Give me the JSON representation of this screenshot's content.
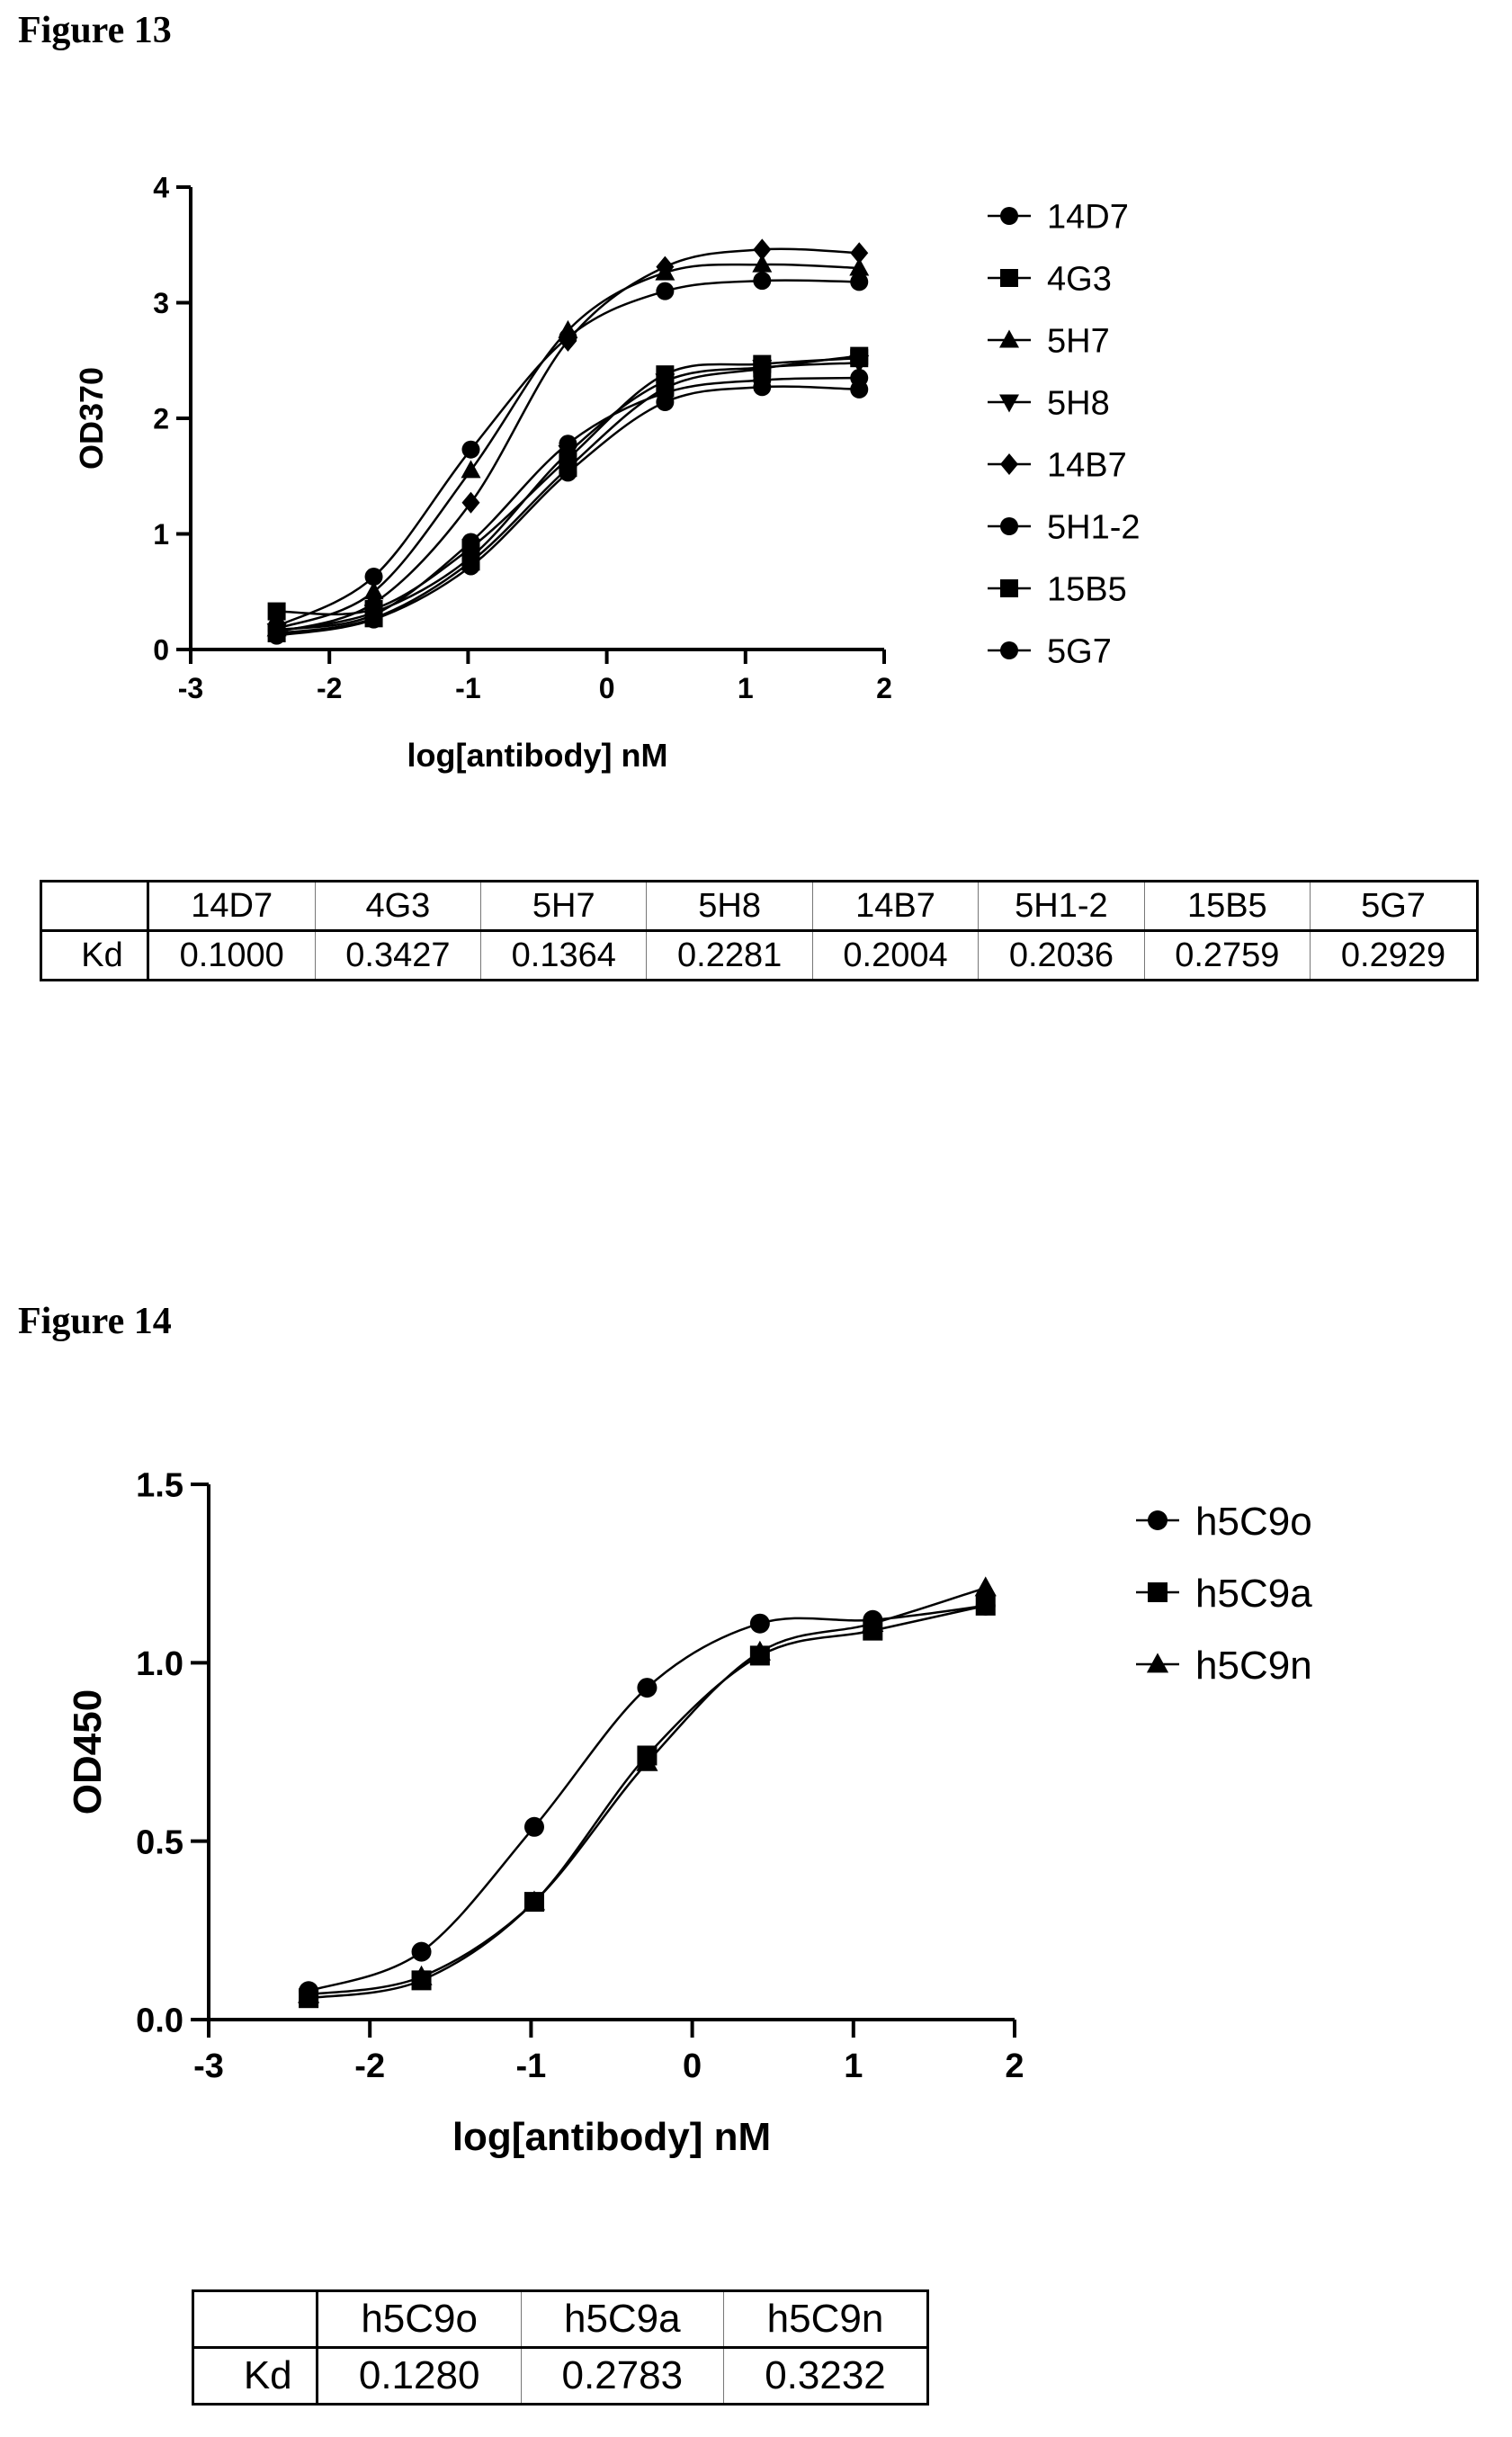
{
  "fig13": {
    "title": "Figure 13",
    "chart_data": {
      "type": "line",
      "xlabel": "log[antibody] nM",
      "ylabel": "OD370",
      "xlim": [
        -3,
        2
      ],
      "ylim": [
        0,
        4
      ],
      "xticks": [
        "-3",
        "-2",
        "-1",
        "0",
        "1",
        "2"
      ],
      "yticks": [
        "0",
        "1",
        "2",
        "3",
        "4"
      ],
      "legend": "right",
      "x": [
        -2.38,
        -1.68,
        -0.98,
        -0.28,
        0.42,
        1.12,
        1.82
      ],
      "series": [
        {
          "name": "14D7",
          "marker": "circle",
          "values": [
            0.2,
            0.63,
            1.73,
            2.7,
            3.1,
            3.19,
            3.18
          ]
        },
        {
          "name": "4G3",
          "marker": "square",
          "values": [
            0.33,
            0.35,
            0.88,
            1.65,
            2.38,
            2.47,
            2.52
          ]
        },
        {
          "name": "5H7",
          "marker": "triangle-up",
          "values": [
            0.18,
            0.5,
            1.55,
            2.76,
            3.26,
            3.33,
            3.3
          ]
        },
        {
          "name": "5H8",
          "marker": "triangle-down",
          "values": [
            0.16,
            0.32,
            0.8,
            1.7,
            2.32,
            2.44,
            2.48
          ]
        },
        {
          "name": "14B7",
          "marker": "diamond",
          "values": [
            0.15,
            0.4,
            1.27,
            2.67,
            3.31,
            3.46,
            3.43
          ]
        },
        {
          "name": "5H1-2",
          "marker": "circle",
          "values": [
            0.17,
            0.3,
            0.93,
            1.78,
            2.22,
            2.33,
            2.35
          ]
        },
        {
          "name": "15B5",
          "marker": "square",
          "values": [
            0.14,
            0.27,
            0.76,
            1.57,
            2.26,
            2.43,
            2.54
          ]
        },
        {
          "name": "5G7",
          "marker": "circle",
          "values": [
            0.12,
            0.26,
            0.72,
            1.53,
            2.14,
            2.27,
            2.25
          ]
        }
      ]
    },
    "table": {
      "row_label": "Kd",
      "columns": [
        "14D7",
        "4G3",
        "5H7",
        "5H8",
        "14B7",
        "5H1-2",
        "15B5",
        "5G7"
      ],
      "values": [
        "0.1000",
        "0.3427",
        "0.1364",
        "0.2281",
        "0.2004",
        "0.2036",
        "0.2759",
        "0.2929"
      ]
    }
  },
  "fig14": {
    "title": "Figure 14",
    "chart_data": {
      "type": "line",
      "xlabel": "log[antibody] nM",
      "ylabel": "OD450",
      "xlim": [
        -3,
        2
      ],
      "ylim": [
        0,
        1.5
      ],
      "xticks": [
        "-3",
        "-2",
        "-1",
        "0",
        "1",
        "2"
      ],
      "yticks": [
        "0.0",
        "0.5",
        "1.0",
        "1.5"
      ],
      "legend": "right",
      "x": [
        -2.38,
        -1.68,
        -0.98,
        -0.28,
        0.42,
        1.12,
        1.82
      ],
      "series": [
        {
          "name": "h5C9o",
          "marker": "circle",
          "values": [
            0.08,
            0.19,
            0.54,
            0.93,
            1.11,
            1.12,
            1.16
          ]
        },
        {
          "name": "h5C9a",
          "marker": "square",
          "values": [
            0.06,
            0.11,
            0.33,
            0.74,
            1.02,
            1.09,
            1.16
          ]
        },
        {
          "name": "h5C9n",
          "marker": "triangle-up",
          "values": [
            0.07,
            0.12,
            0.33,
            0.72,
            1.03,
            1.11,
            1.21
          ]
        }
      ]
    },
    "table": {
      "row_label": "Kd",
      "columns": [
        "h5C9o",
        "h5C9a",
        "h5C9n"
      ],
      "values": [
        "0.1280",
        "0.2783",
        "0.3232"
      ]
    }
  }
}
